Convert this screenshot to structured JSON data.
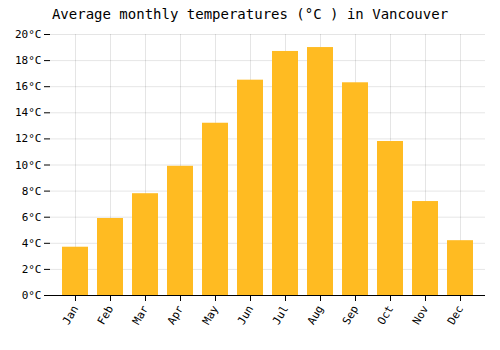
{
  "chart_data": {
    "type": "bar",
    "title": "Average monthly temperatures (°C ) in Vancouver",
    "categories": [
      "Jan",
      "Feb",
      "Mar",
      "Apr",
      "May",
      "Jun",
      "Jul",
      "Aug",
      "Sep",
      "Oct",
      "Nov",
      "Dec"
    ],
    "values": [
      3.7,
      5.9,
      7.8,
      9.9,
      13.2,
      16.5,
      18.7,
      19.0,
      16.3,
      11.8,
      7.2,
      4.2
    ],
    "color": "#FFBB22",
    "ylim": [
      0,
      20
    ],
    "yticks": [
      {
        "value": 0,
        "label": "0°C"
      },
      {
        "value": 2,
        "label": "2°C"
      },
      {
        "value": 4,
        "label": "4°C"
      },
      {
        "value": 6,
        "label": "6°C"
      },
      {
        "value": 8,
        "label": "8°C"
      },
      {
        "value": 10,
        "label": "10°C"
      },
      {
        "value": 12,
        "label": "12°C"
      },
      {
        "value": 14,
        "label": "14°C"
      },
      {
        "value": 16,
        "label": "16°C"
      },
      {
        "value": 18,
        "label": "18°C"
      },
      {
        "value": 20,
        "label": "20°C"
      }
    ],
    "grid": true
  }
}
